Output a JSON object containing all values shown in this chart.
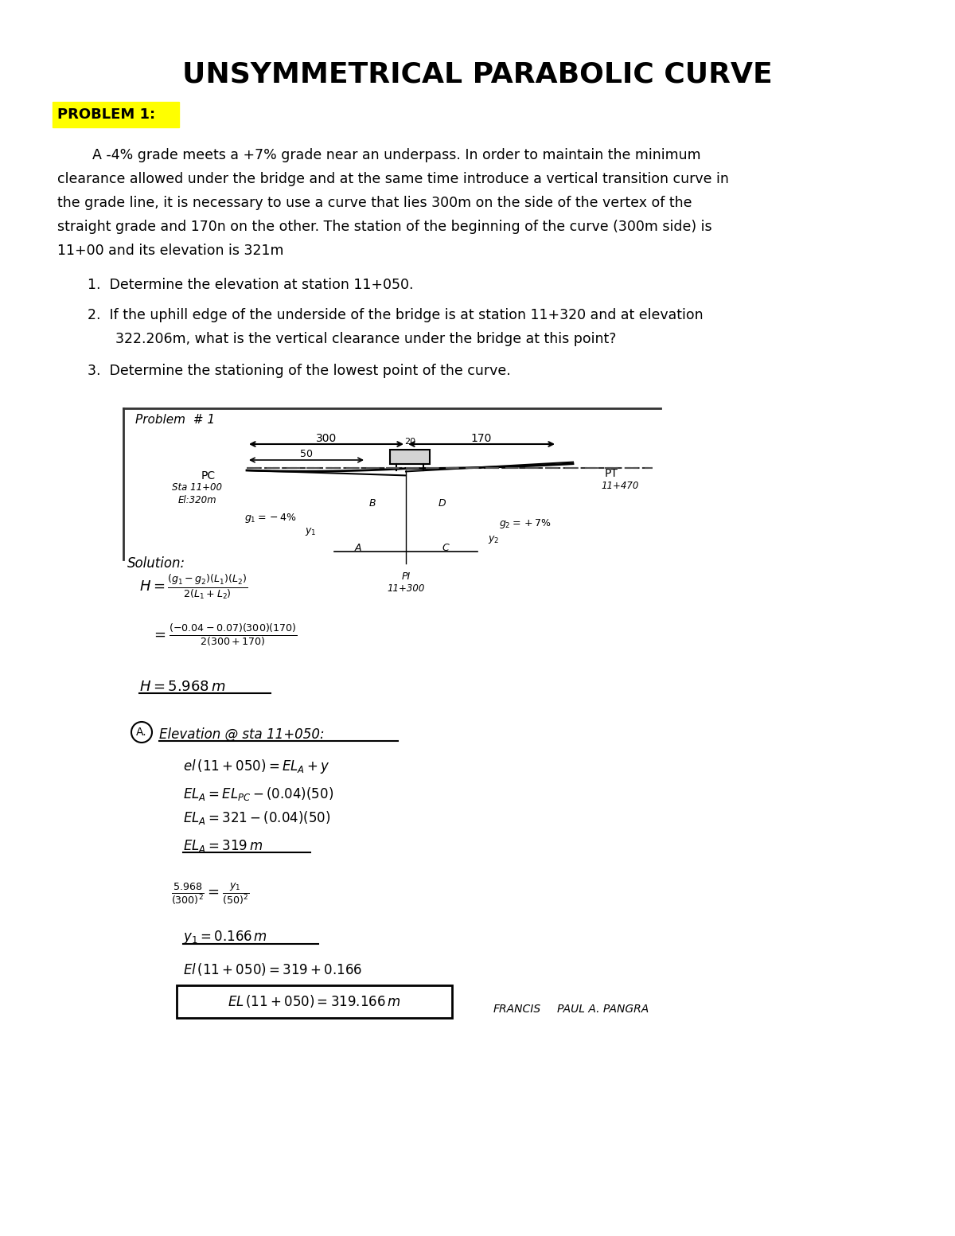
{
  "title": "UNSYMMETRICAL PARABOLIC CURVE",
  "problem_label": "PROBLEM 1:",
  "problem_text": "A -4% grade meets a +7% grade near an underpass. In order to maintain the minimum\nclearance allowed under the bridge and at the same time introduce a vertical transition curve in\nthe grade line, it is necessary to use a curve that lies 300m on the side of the vertex of the\nstraight grade and 170n on the other. The station of the beginning of the curve (300m side) is\n11+00 and its elevation is 321m",
  "questions": [
    "Determine the elevation at station 11+050.",
    "If the uphill edge of the underside of the bridge is at station 11+320 and at elevation\n     322.206m, what is the vertical clearance under the bridge at this point?",
    "Determine the stationing of the lowest point of the curve."
  ],
  "bg_color": "#ffffff",
  "highlight_color": "#ffff00",
  "text_color": "#000000"
}
